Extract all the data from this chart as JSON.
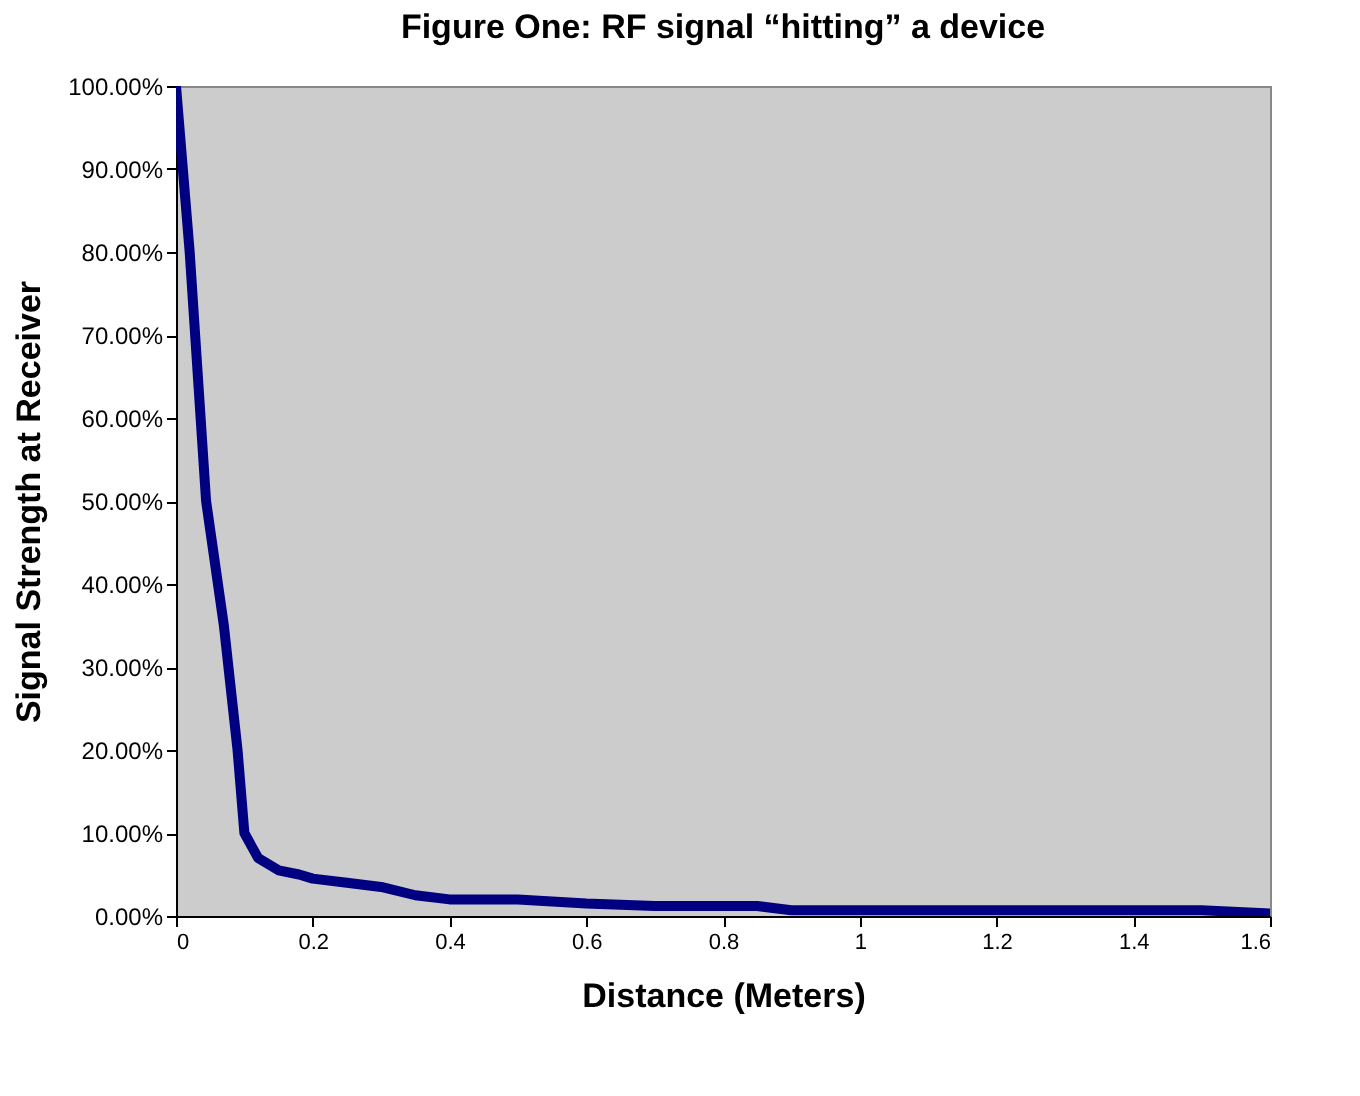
{
  "chart_data": {
    "type": "line",
    "title": "Figure One: RF signal “hitting” a device",
    "xlabel": "Distance (Meters)",
    "ylabel": "Signal Strength at Receiver",
    "x": [
      0,
      0.02,
      0.044,
      0.07,
      0.09,
      0.1,
      0.12,
      0.15,
      0.18,
      0.2,
      0.25,
      0.3,
      0.35,
      0.4,
      0.5,
      0.6,
      0.7,
      0.85,
      0.9,
      1.5,
      1.6
    ],
    "series": [
      {
        "color": "#000080",
        "values": [
          100,
          80,
          50,
          35,
          20,
          10,
          7,
          5.5,
          5,
          4.5,
          4,
          3.5,
          2.5,
          2,
          2,
          1.5,
          1.2,
          1.2,
          0.7,
          0.7,
          0.3
        ]
      }
    ],
    "xlim": [
      0,
      1.6
    ],
    "xticks": [
      0,
      0.2,
      0.4,
      0.6,
      0.8,
      1,
      1.2,
      1.4,
      1.6
    ],
    "ylim": [
      0,
      100
    ],
    "yticks": [
      {
        "value": 0,
        "label": "0.00%"
      },
      {
        "value": 10,
        "label": "10.00%"
      },
      {
        "value": 20,
        "label": "20.00%"
      },
      {
        "value": 30,
        "label": "30.00%"
      },
      {
        "value": 40,
        "label": "40.00%"
      },
      {
        "value": 50,
        "label": "50.00%"
      },
      {
        "value": 60,
        "label": "60.00%"
      },
      {
        "value": 70,
        "label": "70.00%"
      },
      {
        "value": 80,
        "label": "80.00%"
      },
      {
        "value": 90,
        "label": "90.00%"
      },
      {
        "value": 100,
        "label": "100.00%"
      }
    ],
    "grid": false,
    "marker": "none",
    "line_style": "solid"
  }
}
